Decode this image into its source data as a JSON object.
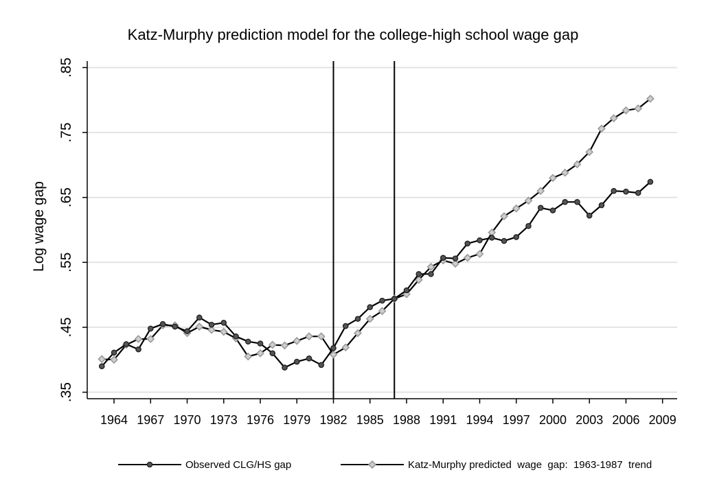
{
  "chart_data": {
    "type": "line",
    "title": "Katz-Murphy prediction model for the college-high school wage gap",
    "xlabel": "",
    "ylabel": "Log wage gap",
    "xlim": [
      1961.8,
      2010.2
    ],
    "ylim": [
      0.34,
      0.86
    ],
    "xticks": [
      1964,
      1967,
      1970,
      1973,
      1976,
      1979,
      1982,
      1985,
      1988,
      1991,
      1994,
      1997,
      2000,
      2003,
      2006,
      2009
    ],
    "yticks": [
      ".35",
      ".45",
      ".55",
      ".65",
      ".75",
      ".85"
    ],
    "ytick_values": [
      0.35,
      0.45,
      0.55,
      0.65,
      0.75,
      0.85
    ],
    "grid": true,
    "vlines": [
      1982,
      1987
    ],
    "legend_position": "bottom",
    "x": [
      1963,
      1964,
      1965,
      1966,
      1967,
      1968,
      1969,
      1970,
      1971,
      1972,
      1973,
      1974,
      1975,
      1976,
      1977,
      1978,
      1979,
      1980,
      1981,
      1982,
      1983,
      1984,
      1985,
      1986,
      1987,
      1988,
      1989,
      1990,
      1991,
      1992,
      1993,
      1994,
      1995,
      1996,
      1997,
      1998,
      1999,
      2000,
      2001,
      2002,
      2003,
      2004,
      2005,
      2006,
      2007,
      2008
    ],
    "series": [
      {
        "name": "Observed CLG/HS gap",
        "marker": "circle",
        "color": "#000000",
        "marker_color": "#555555",
        "values": [
          0.39,
          0.411,
          0.424,
          0.416,
          0.448,
          0.455,
          0.451,
          0.444,
          0.465,
          0.454,
          0.457,
          0.436,
          0.428,
          0.425,
          0.41,
          0.388,
          0.397,
          0.402,
          0.392,
          0.418,
          0.452,
          0.463,
          0.481,
          0.491,
          0.494,
          0.507,
          0.532,
          0.532,
          0.557,
          0.556,
          0.579,
          0.584,
          0.588,
          0.583,
          0.589,
          0.606,
          0.634,
          0.63,
          0.643,
          0.643,
          0.622,
          0.638,
          0.66,
          0.659,
          0.657,
          0.674
        ]
      },
      {
        "name": "Katz-Murphy predicted  wage  gap:  1963-1987  trend",
        "marker": "diamond",
        "color": "#000000",
        "marker_color": "#aaaaaa",
        "values": [
          0.401,
          0.4,
          0.423,
          0.432,
          0.432,
          0.453,
          0.453,
          0.441,
          0.451,
          0.446,
          0.443,
          0.433,
          0.405,
          0.41,
          0.423,
          0.422,
          0.429,
          0.436,
          0.436,
          0.408,
          0.419,
          0.441,
          0.463,
          0.475,
          0.494,
          0.501,
          0.523,
          0.543,
          0.553,
          0.548,
          0.557,
          0.563,
          0.596,
          0.621,
          0.633,
          0.645,
          0.66,
          0.68,
          0.688,
          0.701,
          0.72,
          0.756,
          0.772,
          0.784,
          0.787,
          0.802
        ]
      }
    ]
  }
}
